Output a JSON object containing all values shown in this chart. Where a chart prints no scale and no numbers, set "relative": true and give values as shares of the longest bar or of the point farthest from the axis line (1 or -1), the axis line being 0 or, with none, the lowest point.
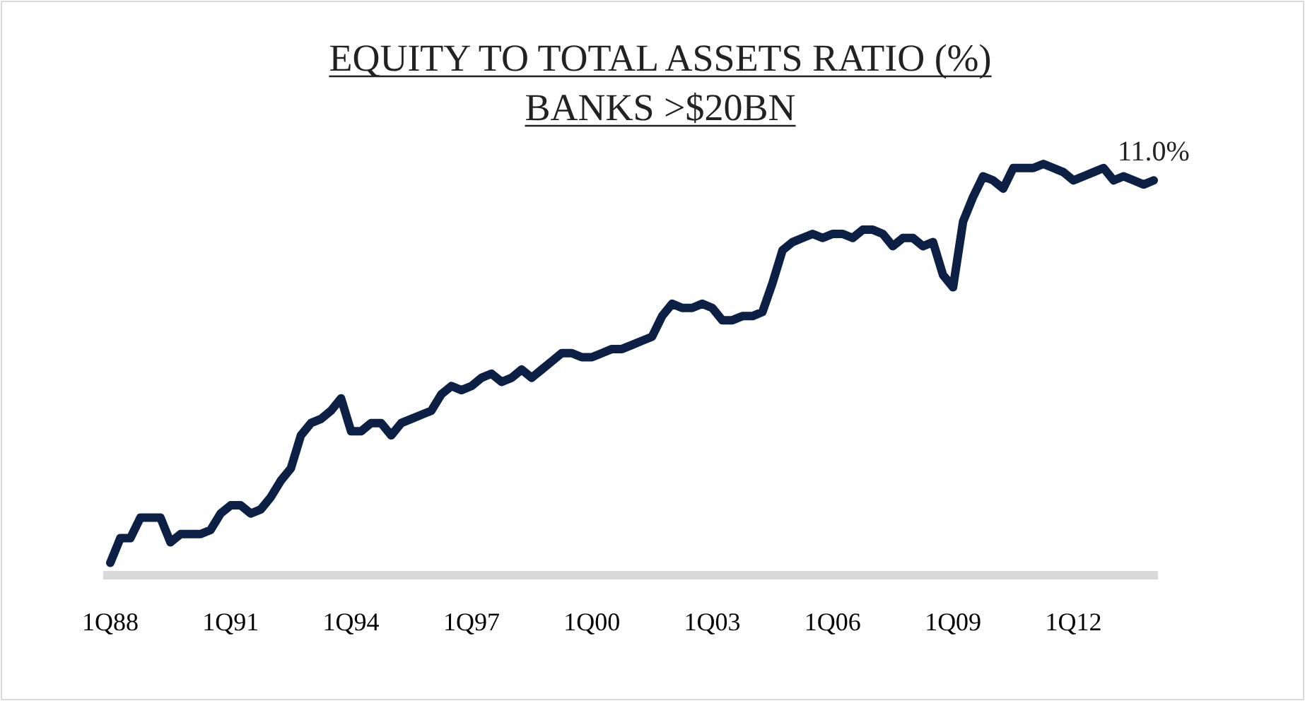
{
  "chart_data": {
    "type": "line",
    "title": "EQUITY TO TOTAL ASSETS RATIO (%)",
    "subtitle": "BANKS >$20BN",
    "relative": true,
    "categories": [
      "1Q88",
      null,
      null,
      null,
      null,
      null,
      null,
      null,
      null,
      null,
      null,
      null,
      "1Q91",
      null,
      null,
      null,
      null,
      null,
      null,
      null,
      null,
      null,
      null,
      null,
      "1Q94",
      null,
      null,
      null,
      null,
      null,
      null,
      null,
      null,
      null,
      null,
      null,
      "1Q97",
      null,
      null,
      null,
      null,
      null,
      null,
      null,
      null,
      null,
      null,
      null,
      "1Q00",
      null,
      null,
      null,
      null,
      null,
      null,
      null,
      null,
      null,
      null,
      null,
      "1Q03",
      null,
      null,
      null,
      null,
      null,
      null,
      null,
      null,
      null,
      null,
      null,
      "1Q06",
      null,
      null,
      null,
      null,
      null,
      null,
      null,
      null,
      null,
      null,
      null,
      "1Q09",
      null,
      null,
      null,
      null,
      null,
      null,
      null,
      null,
      null,
      null,
      null,
      "1Q12",
      null,
      null,
      null,
      null,
      null,
      null,
      null,
      null
    ],
    "values": [
      0.03,
      0.09,
      0.09,
      0.14,
      0.14,
      0.14,
      0.08,
      0.1,
      0.1,
      0.1,
      0.11,
      0.15,
      0.17,
      0.17,
      0.15,
      0.16,
      0.19,
      0.23,
      0.26,
      0.34,
      0.37,
      0.38,
      0.4,
      0.43,
      0.35,
      0.35,
      0.37,
      0.37,
      0.34,
      0.37,
      0.38,
      0.39,
      0.4,
      0.44,
      0.46,
      0.45,
      0.46,
      0.48,
      0.49,
      0.47,
      0.48,
      0.5,
      0.48,
      0.5,
      0.52,
      0.54,
      0.54,
      0.53,
      0.53,
      0.54,
      0.55,
      0.55,
      0.56,
      0.57,
      0.58,
      0.63,
      0.66,
      0.65,
      0.65,
      0.66,
      0.65,
      0.62,
      0.62,
      0.63,
      0.63,
      0.64,
      0.71,
      0.79,
      0.81,
      0.82,
      0.83,
      0.82,
      0.83,
      0.83,
      0.82,
      0.84,
      0.84,
      0.83,
      0.8,
      0.82,
      0.82,
      0.8,
      0.81,
      0.73,
      0.7,
      0.86,
      0.92,
      0.97,
      0.96,
      0.94,
      0.99,
      0.99,
      0.99,
      1,
      0.99,
      0.98,
      0.96,
      0.97,
      0.98,
      0.99,
      0.96,
      0.97,
      0.96,
      0.95,
      0.96
    ],
    "annotations": [
      "11.0%"
    ],
    "color": "#0c1f45",
    "line_style": "solid"
  }
}
